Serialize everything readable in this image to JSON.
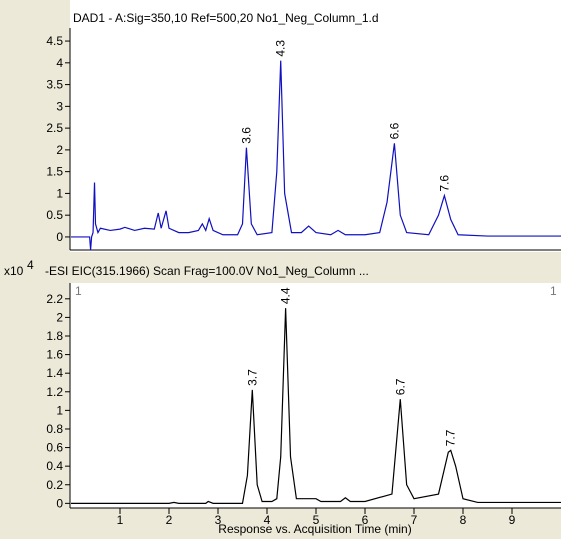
{
  "chart_data": [
    {
      "type": "line",
      "title": "DAD1 - A:Sig=350,10 Ref=500,20 No1_Neg_Column_1.d",
      "xlim": [
        0,
        10
      ],
      "ylim": [
        -0.3,
        4.8
      ],
      "yticks": [
        0,
        0.5,
        1,
        1.5,
        2,
        2.5,
        3,
        3.5,
        4,
        4.5
      ],
      "series": [
        {
          "name": "DAD1",
          "color": "#1010c0",
          "x": [
            0,
            0.38,
            0.4,
            0.42,
            0.45,
            0.48,
            0.5,
            0.55,
            0.6,
            0.8,
            1.0,
            1.1,
            1.3,
            1.5,
            1.7,
            1.78,
            1.84,
            1.94,
            2.0,
            2.2,
            2.4,
            2.6,
            2.68,
            2.75,
            2.82,
            2.9,
            3.1,
            3.4,
            3.5,
            3.58,
            3.68,
            3.8,
            4.1,
            4.2,
            4.28,
            4.36,
            4.5,
            4.7,
            4.85,
            5.0,
            5.3,
            5.45,
            5.6,
            6.0,
            6.3,
            6.45,
            6.6,
            6.72,
            6.85,
            7.3,
            7.5,
            7.62,
            7.75,
            7.9,
            8.5,
            10
          ],
          "values": [
            0,
            0,
            -0.3,
            0,
            0.1,
            1.25,
            0.3,
            0.1,
            0.2,
            0.15,
            0.18,
            0.22,
            0.15,
            0.2,
            0.18,
            0.55,
            0.2,
            0.6,
            0.2,
            0.1,
            0.1,
            0.15,
            0.3,
            0.15,
            0.42,
            0.15,
            0.05,
            0.05,
            0.3,
            2.05,
            0.3,
            0.05,
            0.1,
            1.5,
            4.05,
            1.0,
            0.1,
            0.1,
            0.25,
            0.1,
            0.05,
            0.15,
            0.05,
            0.05,
            0.1,
            0.8,
            2.15,
            0.5,
            0.1,
            0.05,
            0.5,
            0.95,
            0.4,
            0.05,
            0.02,
            0.02
          ]
        }
      ],
      "annotations": [
        {
          "text": "3.6",
          "x": 3.58,
          "y": 2.05
        },
        {
          "text": "4.3",
          "x": 4.28,
          "y": 4.05
        },
        {
          "text": "6.6",
          "x": 6.6,
          "y": 2.15
        },
        {
          "text": "7.6",
          "x": 7.62,
          "y": 0.95
        }
      ]
    },
    {
      "type": "line",
      "title": "-ESI EIC(315.1966) Scan Frag=100.0V No1_Neg_Column ...",
      "y_multiplier": "x10",
      "y_exponent": "4",
      "corner_labels": [
        "1",
        "1"
      ],
      "x_label": "Response vs. Acquisition Time (min)",
      "xlim": [
        0,
        10
      ],
      "ylim": [
        -0.05,
        2.37
      ],
      "xticks": [
        1,
        2,
        3,
        4,
        5,
        6,
        7,
        8,
        9
      ],
      "yticks": [
        0,
        0.2,
        0.4,
        0.6,
        0.8,
        1,
        1.2,
        1.4,
        1.6,
        1.8,
        2,
        2.2
      ],
      "series": [
        {
          "name": "EIC",
          "color": "#000000",
          "x": [
            0,
            2.0,
            2.1,
            2.2,
            2.75,
            2.8,
            2.9,
            3.5,
            3.6,
            3.7,
            3.8,
            3.9,
            4.1,
            4.2,
            4.28,
            4.38,
            4.48,
            4.6,
            5.0,
            5.1,
            5.5,
            5.6,
            5.7,
            6.0,
            6.55,
            6.72,
            6.85,
            7.0,
            7.5,
            7.7,
            7.75,
            7.85,
            8.0,
            8.3,
            10
          ],
          "values": [
            0,
            0,
            0.01,
            0,
            0,
            0.02,
            0,
            0,
            0.3,
            1.22,
            0.2,
            0.02,
            0.02,
            0.05,
            0.5,
            2.1,
            0.5,
            0.05,
            0.05,
            0.02,
            0.02,
            0.06,
            0.02,
            0.02,
            0.1,
            1.12,
            0.2,
            0.05,
            0.1,
            0.55,
            0.57,
            0.4,
            0.05,
            0.01,
            0.01
          ]
        }
      ],
      "annotations": [
        {
          "text": "3.7",
          "x": 3.7,
          "y": 1.22
        },
        {
          "text": "4.4",
          "x": 4.38,
          "y": 2.1
        },
        {
          "text": "6.7",
          "x": 6.72,
          "y": 1.12
        },
        {
          "text": "7.7",
          "x": 7.75,
          "y": 0.57
        }
      ]
    }
  ]
}
